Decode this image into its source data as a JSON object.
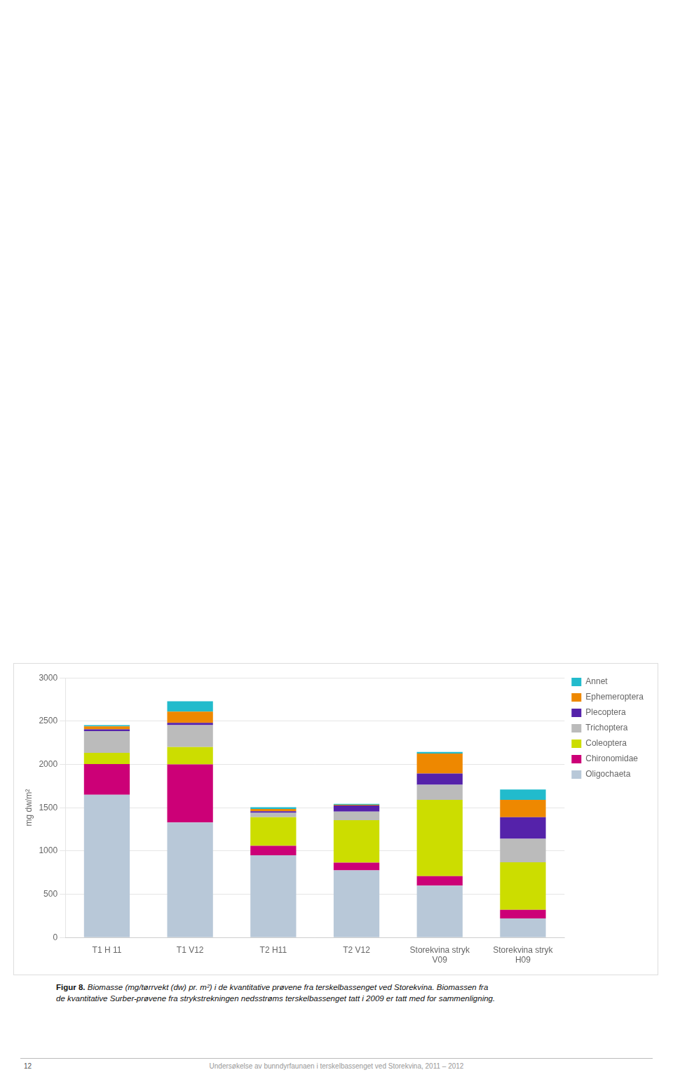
{
  "chart_data": {
    "type": "bar",
    "stacked": true,
    "categories": [
      "T1 H 11",
      "T1 V12",
      "T2 H11",
      "T2 V12",
      "Storekvina stryk\nV09",
      "Storekvina stryk\nH09"
    ],
    "series": [
      {
        "name": "Oligochaeta",
        "color": "#b8c8d8",
        "values": [
          1650,
          1330,
          950,
          775,
          600,
          220
        ]
      },
      {
        "name": "Chironomidae",
        "color": "#cc0077",
        "values": [
          355,
          670,
          110,
          90,
          110,
          100
        ]
      },
      {
        "name": "Coleoptera",
        "color": "#ccdd00",
        "values": [
          130,
          200,
          330,
          490,
          880,
          550
        ]
      },
      {
        "name": "Trichoptera",
        "color": "#bbbbbb",
        "values": [
          250,
          255,
          50,
          100,
          175,
          270
        ]
      },
      {
        "name": "Plecoptera",
        "color": "#5522aa",
        "values": [
          20,
          25,
          20,
          70,
          130,
          250
        ]
      },
      {
        "name": "Ephemeroptera",
        "color": "#ee8800",
        "values": [
          35,
          130,
          25,
          10,
          230,
          200
        ]
      },
      {
        "name": "Annet",
        "color": "#22bbcc",
        "values": [
          15,
          120,
          20,
          10,
          20,
          120
        ]
      }
    ],
    "y_label": "mg dw/m²",
    "ylim": [
      0,
      3000
    ],
    "yticks": [
      0,
      500,
      1000,
      1500,
      2000,
      2500,
      3000
    ],
    "grid": true,
    "legend": "right",
    "annotations": [
      "Figur 8.",
      "Biomasse (mg/tørrvekt (dw) pr. m²) i de kvantitative prøvene fra terskelbassenget ved Storekvina. Biomassen fra\nde kvantitative Surber-prøvene fra strykstrekningen nedsstrøms terskelbassenget tatt i 2009 er tatt med for sammenligning.",
      "12",
      "Undersøkelse av bunndyrfaunaen i terskelbassenget ved Storekvina, 2011 – 2012"
    ]
  }
}
